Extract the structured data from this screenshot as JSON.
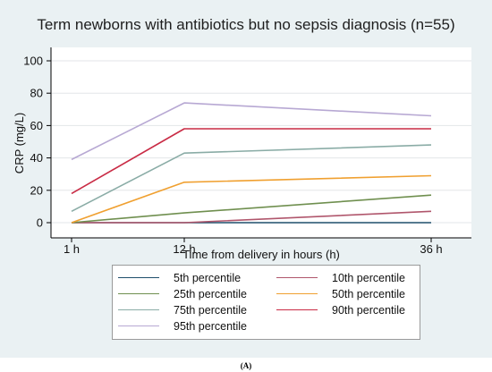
{
  "chart_data": {
    "type": "line",
    "title": "Term newborns with antibiotics but no sepsis diagnosis (n=55)",
    "xlabel": "Time from delivery in hours (h)",
    "ylabel": "CRP (mg/L)",
    "x_hours": [
      1,
      12,
      36
    ],
    "x_tick_labels": [
      "1 h",
      "12 h",
      "36 h"
    ],
    "y_ticks": [
      0,
      20,
      40,
      60,
      80,
      100
    ],
    "ylim": [
      0,
      100
    ],
    "grid": "horizontal",
    "legend_position": "bottom",
    "series": [
      {
        "name": "5th percentile",
        "values": [
          0,
          0,
          0
        ],
        "color": "#1f4e6b"
      },
      {
        "name": "10th percentile",
        "values": [
          0,
          0,
          7
        ],
        "color": "#b0566c"
      },
      {
        "name": "25th percentile",
        "values": [
          0,
          6,
          17
        ],
        "color": "#6f8f4f"
      },
      {
        "name": "50th percentile",
        "values": [
          0,
          25,
          29
        ],
        "color": "#f0a030"
      },
      {
        "name": "75th percentile",
        "values": [
          7,
          43,
          48
        ],
        "color": "#8aaca6"
      },
      {
        "name": "90th percentile",
        "values": [
          18,
          58,
          58
        ],
        "color": "#c92b45"
      },
      {
        "name": "95th percentile",
        "values": [
          39,
          74,
          66
        ],
        "color": "#b7a8d3"
      }
    ]
  },
  "caption": "(A)"
}
